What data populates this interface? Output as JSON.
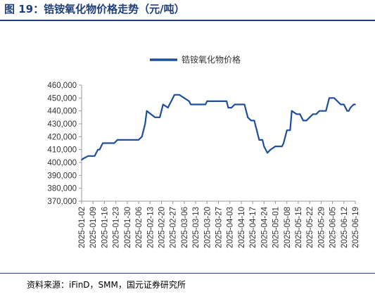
{
  "figure": {
    "title": "图 19：锆铵氧化物价格走势（元/吨）",
    "source": "资料来源：iFinD，SMM，国元证券研究所"
  },
  "colors": {
    "line": "#1f4e9c",
    "accent": "#1f3f7a"
  },
  "chart_data": {
    "type": "line",
    "title": "",
    "xlabel": "",
    "ylabel": "",
    "ylim": [
      370000,
      460000
    ],
    "y_ticks": [
      460000,
      450000,
      440000,
      430000,
      420000,
      410000,
      400000,
      390000,
      380000,
      370000
    ],
    "y_tick_labels": [
      "460,000",
      "450,000",
      "440,000",
      "430,000",
      "420,000",
      "410,000",
      "400,000",
      "390,000",
      "380,000",
      "370,000"
    ],
    "x_ticks": [
      "2025-01-02",
      "2025-01-09",
      "2025-01-16",
      "2025-01-23",
      "2025-01-30",
      "2025-02-06",
      "2025-02-13",
      "2025-02-20",
      "2025-02-27",
      "2025-03-06",
      "2025-03-13",
      "2025-03-20",
      "2025-03-27",
      "2025-04-03",
      "2025-04-10",
      "2025-04-17",
      "2025-04-24",
      "2025-05-01",
      "2025-05-08",
      "2025-05-15",
      "2025-05-22",
      "2025-05-29",
      "2025-06-05",
      "2025-06-12",
      "2025-06-19"
    ],
    "legend_position": "top-center",
    "grid": false,
    "series": [
      {
        "name": "锆铵氧化物价格",
        "x": [
          "2025-01-02",
          "2025-01-03",
          "2025-01-06",
          "2025-01-08",
          "2025-01-10",
          "2025-01-12",
          "2025-01-13",
          "2025-01-15",
          "2025-01-20",
          "2025-01-22",
          "2025-01-24",
          "2025-02-06",
          "2025-02-08",
          "2025-02-10",
          "2025-02-11",
          "2025-02-16",
          "2025-02-17",
          "2025-02-18",
          "2025-02-19",
          "2025-02-21",
          "2025-02-24",
          "2025-02-25",
          "2025-02-26",
          "2025-02-28",
          "2025-03-03",
          "2025-03-09",
          "2025-03-10",
          "2025-03-19",
          "2025-03-20",
          "2025-03-24",
          "2025-03-25",
          "2025-04-01",
          "2025-04-02",
          "2025-04-04",
          "2025-04-06",
          "2025-04-10",
          "2025-04-12",
          "2025-04-14",
          "2025-04-16",
          "2025-04-18",
          "2025-04-20",
          "2025-04-21",
          "2025-04-23",
          "2025-04-24",
          "2025-04-26",
          "2025-04-28",
          "2025-05-01",
          "2025-05-03",
          "2025-05-05",
          "2025-05-06",
          "2025-05-08",
          "2025-05-09",
          "2025-05-10",
          "2025-05-11",
          "2025-05-14",
          "2025-05-15",
          "2025-05-16",
          "2025-05-18",
          "2025-05-20",
          "2025-05-22",
          "2025-05-24",
          "2025-05-26",
          "2025-05-28",
          "2025-05-30",
          "2025-06-01",
          "2025-06-03",
          "2025-06-04",
          "2025-06-06",
          "2025-06-08",
          "2025-06-10",
          "2025-06-12",
          "2025-06-14",
          "2025-06-15",
          "2025-06-16",
          "2025-06-18",
          "2025-06-19"
        ],
        "values": [
          402000,
          403000,
          405000,
          405000,
          405000,
          410000,
          410000,
          415000,
          415000,
          415000,
          417500,
          417500,
          420000,
          430000,
          440000,
          435000,
          435000,
          435000,
          435000,
          445000,
          442500,
          445000,
          447500,
          452500,
          452500,
          447500,
          445000,
          445000,
          447500,
          447500,
          447500,
          447500,
          442500,
          442500,
          445000,
          445000,
          445000,
          435000,
          432500,
          432500,
          422500,
          417500,
          417500,
          412500,
          407500,
          410000,
          412500,
          412500,
          412500,
          415000,
          425000,
          425000,
          425000,
          440000,
          437500,
          437500,
          437500,
          432500,
          432500,
          435000,
          437500,
          437500,
          440000,
          440000,
          440000,
          450000,
          450000,
          450000,
          447500,
          445000,
          445000,
          440000,
          440000,
          442500,
          445000,
          445000
        ]
      }
    ]
  }
}
